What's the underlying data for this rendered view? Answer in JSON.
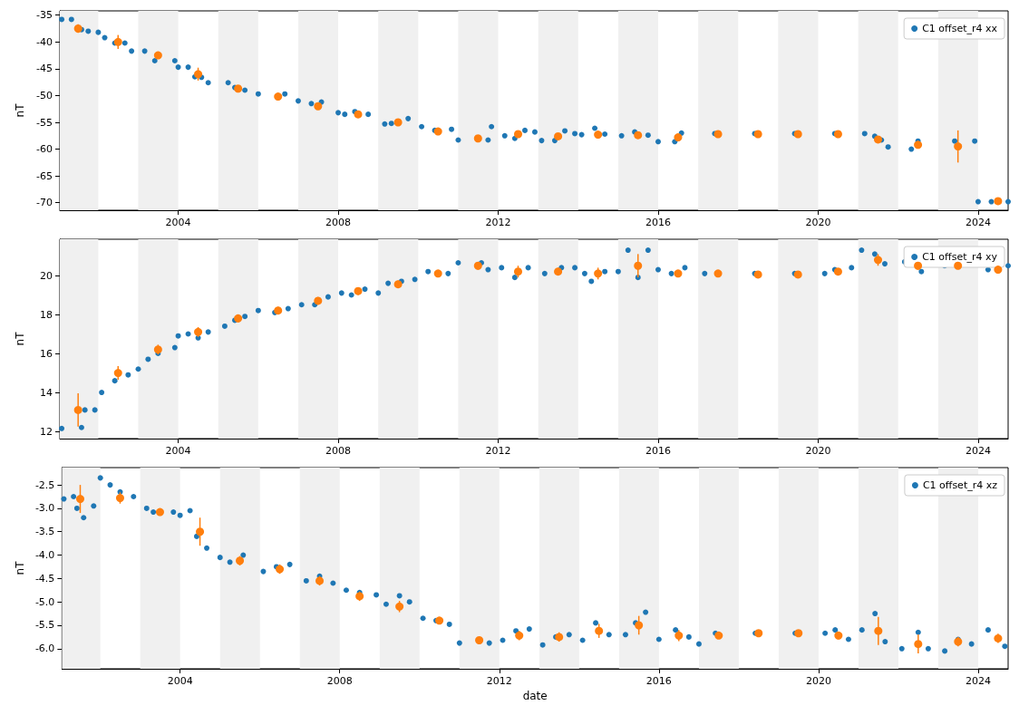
{
  "chart_data": [
    {
      "type": "scatter",
      "ylabel": "nT",
      "legend": "top right",
      "marker": "circle",
      "xlim": [
        "2001-01-15",
        "2024-10-01"
      ],
      "ylim": [
        -71.4,
        -34.2
      ],
      "xticks": [
        "2004",
        "2008",
        "2012",
        "2016",
        "2020",
        "2024"
      ],
      "yticks": [
        -70,
        -65,
        -60,
        -55,
        -50,
        -45,
        -40,
        -35
      ],
      "bands": [
        {
          "axis": "x",
          "from": "2001",
          "to": "2002",
          "color": "#f0f0f0"
        },
        {
          "axis": "x",
          "from": "2003",
          "to": "2004",
          "color": "#f0f0f0"
        },
        {
          "axis": "x",
          "from": "2005",
          "to": "2006",
          "color": "#f0f0f0"
        },
        {
          "axis": "x",
          "from": "2007",
          "to": "2008",
          "color": "#f0f0f0"
        },
        {
          "axis": "x",
          "from": "2009",
          "to": "2010",
          "color": "#f0f0f0"
        },
        {
          "axis": "x",
          "from": "2011",
          "to": "2012",
          "color": "#f0f0f0"
        },
        {
          "axis": "x",
          "from": "2013",
          "to": "2014",
          "color": "#f0f0f0"
        },
        {
          "axis": "x",
          "from": "2015",
          "to": "2016",
          "color": "#f0f0f0"
        },
        {
          "axis": "x",
          "from": "2017",
          "to": "2018",
          "color": "#f0f0f0"
        },
        {
          "axis": "x",
          "from": "2019",
          "to": "2020",
          "color": "#f0f0f0"
        },
        {
          "axis": "x",
          "from": "2021",
          "to": "2022",
          "color": "#f0f0f0"
        },
        {
          "axis": "x",
          "from": "2023",
          "to": "2024",
          "color": "#f0f0f0"
        }
      ],
      "series": [
        {
          "name": "C1 offset_r4 xx",
          "color": "#1f77b4",
          "x": [
            "2001-02",
            "2001-05",
            "2001-08",
            "2001-10",
            "2002-01",
            "2002-03",
            "2002-06",
            "2002-09",
            "2002-11",
            "2003-03",
            "2003-06",
            "2003-12",
            "2004-01",
            "2004-04",
            "2004-06",
            "2004-08",
            "2004-10",
            "2005-04",
            "2005-06",
            "2005-09",
            "2006-01",
            "2006-09",
            "2007-01",
            "2007-05",
            "2007-08",
            "2008-01",
            "2008-03",
            "2008-06",
            "2008-10",
            "2009-03",
            "2009-05",
            "2009-10",
            "2010-02",
            "2010-06",
            "2010-11",
            "2011-01",
            "2011-10",
            "2011-11",
            "2012-03",
            "2012-06",
            "2012-09",
            "2012-12",
            "2013-02",
            "2013-06",
            "2013-09",
            "2013-12",
            "2014-02",
            "2014-06",
            "2014-09",
            "2015-02",
            "2015-06",
            "2015-10",
            "2016-01",
            "2016-06",
            "2016-08",
            "2017-06",
            "2018-06",
            "2019-06",
            "2020-06",
            "2021-03",
            "2021-06",
            "2021-08",
            "2021-10",
            "2022-05",
            "2022-07",
            "2023-06",
            "2023-12",
            "2024-01",
            "2024-05",
            "2024-10"
          ],
          "values": [
            -35.8,
            -35.8,
            -37.7,
            -38,
            -38.2,
            -39.2,
            -40.2,
            -40.2,
            -41.7,
            -41.7,
            -43.5,
            -43.5,
            -44.7,
            -44.7,
            -46.5,
            -46.6,
            -47.6,
            -47.6,
            -48.5,
            -49,
            -49.7,
            -49.7,
            -51,
            -51.5,
            -51.2,
            -53.2,
            -53.5,
            -53,
            -53.5,
            -55.3,
            -55.2,
            -54.3,
            -55.8,
            -56.5,
            -56.3,
            -58.3,
            -58.3,
            -55.8,
            -57.5,
            -58,
            -56.5,
            -56.8,
            -58.4,
            -58.4,
            -56.6,
            -57.1,
            -57.3,
            -56.1,
            -57.2,
            -57.5,
            -56.8,
            -57.4,
            -58.6,
            -58.6,
            -57,
            -57.1,
            -57.1,
            -57.1,
            -57.1,
            -57.1,
            -57.6,
            -58.3,
            -59.6,
            -60,
            -58.5,
            -58.5,
            -58.5,
            -69.8,
            -69.8,
            -69.8
          ]
        },
        {
          "color": "#ff7f0e",
          "x": [
            "2001-07",
            "2002-07",
            "2003-07",
            "2004-07",
            "2005-07",
            "2006-07",
            "2007-07",
            "2008-07",
            "2009-07",
            "2010-07",
            "2011-07",
            "2012-07",
            "2013-07",
            "2014-07",
            "2015-07",
            "2016-07",
            "2017-07",
            "2018-07",
            "2019-07",
            "2020-07",
            "2021-07",
            "2022-07",
            "2023-07",
            "2024-07"
          ],
          "values": [
            -37.5,
            -40,
            -42.5,
            -46,
            -48.7,
            -50.2,
            -52,
            -53.5,
            -55,
            -56.7,
            -58,
            -57.2,
            -57.6,
            -57.3,
            -57.4,
            -57.8,
            -57.2,
            -57.2,
            -57.2,
            -57.2,
            -58.2,
            -59.2,
            -59.5,
            -69.7
          ],
          "errors": [
            0.8,
            1.3,
            0.6,
            1.2,
            0.6,
            0.4,
            0.6,
            0.5,
            0.4,
            0.4,
            0.5,
            0.4,
            0.4,
            0.6,
            0.5,
            0.5,
            0.2,
            0.2,
            0.2,
            0.2,
            0.6,
            0.5,
            3.0,
            0.3
          ]
        }
      ]
    },
    {
      "type": "scatter",
      "ylabel": "nT",
      "legend": "top right",
      "marker": "circle",
      "xlim": [
        "2001-01-15",
        "2024-10-01"
      ],
      "ylim": [
        11.63,
        21.86
      ],
      "xticks": [
        "2004",
        "2008",
        "2012",
        "2016",
        "2020",
        "2024"
      ],
      "yticks": [
        12,
        14,
        16,
        18,
        20
      ],
      "bands": [
        {
          "axis": "x",
          "from": "2001",
          "to": "2002",
          "color": "#f0f0f0"
        },
        {
          "axis": "x",
          "from": "2003",
          "to": "2004",
          "color": "#f0f0f0"
        },
        {
          "axis": "x",
          "from": "2005",
          "to": "2006",
          "color": "#f0f0f0"
        },
        {
          "axis": "x",
          "from": "2007",
          "to": "2008",
          "color": "#f0f0f0"
        },
        {
          "axis": "x",
          "from": "2009",
          "to": "2010",
          "color": "#f0f0f0"
        },
        {
          "axis": "x",
          "from": "2011",
          "to": "2012",
          "color": "#f0f0f0"
        },
        {
          "axis": "x",
          "from": "2013",
          "to": "2014",
          "color": "#f0f0f0"
        },
        {
          "axis": "x",
          "from": "2015",
          "to": "2016",
          "color": "#f0f0f0"
        },
        {
          "axis": "x",
          "from": "2017",
          "to": "2018",
          "color": "#f0f0f0"
        },
        {
          "axis": "x",
          "from": "2019",
          "to": "2020",
          "color": "#f0f0f0"
        },
        {
          "axis": "x",
          "from": "2021",
          "to": "2022",
          "color": "#f0f0f0"
        },
        {
          "axis": "x",
          "from": "2023",
          "to": "2024",
          "color": "#f0f0f0"
        }
      ],
      "series": [
        {
          "name": "C1 offset_r4 xy",
          "color": "#1f77b4",
          "x": [
            "2001-02",
            "2001-08",
            "2001-09",
            "2001-12",
            "2002-02",
            "2002-06",
            "2002-10",
            "2003-01",
            "2003-04",
            "2003-07",
            "2003-12",
            "2004-01",
            "2004-04",
            "2004-07",
            "2004-10",
            "2005-03",
            "2005-06",
            "2005-09",
            "2006-01",
            "2006-06",
            "2006-10",
            "2007-02",
            "2007-06",
            "2007-10",
            "2008-02",
            "2008-05",
            "2008-09",
            "2009-01",
            "2009-04",
            "2009-08",
            "2009-12",
            "2010-04",
            "2010-10",
            "2011-01",
            "2011-08",
            "2011-10",
            "2012-02",
            "2012-06",
            "2012-10",
            "2013-03",
            "2013-08",
            "2013-12",
            "2014-03",
            "2014-05",
            "2014-09",
            "2015-01",
            "2015-04",
            "2015-07",
            "2015-10",
            "2016-01",
            "2016-05",
            "2016-09",
            "2017-03",
            "2018-06",
            "2019-06",
            "2020-03",
            "2020-06",
            "2020-11",
            "2021-02",
            "2021-06",
            "2021-09",
            "2022-03",
            "2022-08",
            "2023-01",
            "2023-03",
            "2023-12",
            "2024-04",
            "2024-10"
          ],
          "values": [
            12.15,
            12.2,
            13.1,
            13.1,
            14,
            14.6,
            14.9,
            15.2,
            15.7,
            16,
            16.3,
            16.9,
            17,
            16.8,
            17.1,
            17.4,
            17.7,
            17.9,
            18.2,
            18.1,
            18.3,
            18.5,
            18.5,
            18.9,
            19.1,
            19,
            19.3,
            19.1,
            19.6,
            19.7,
            19.8,
            20.2,
            20.1,
            20.65,
            20.65,
            20.3,
            20.4,
            19.9,
            20.4,
            20.1,
            20.4,
            20.4,
            20.1,
            19.7,
            20.2,
            20.2,
            21.3,
            19.9,
            21.3,
            20.3,
            20.1,
            20.4,
            20.1,
            20.1,
            20.1,
            20.1,
            20.3,
            20.4,
            21.3,
            21.1,
            20.6,
            20.7,
            20.2,
            null,
            20.5,
            null,
            20.3,
            20.5
          ]
        },
        {
          "color": "#ff7f0e",
          "x": [
            "2001-07",
            "2002-07",
            "2003-07",
            "2004-07",
            "2005-07",
            "2006-07",
            "2007-07",
            "2008-07",
            "2009-07",
            "2010-07",
            "2011-07",
            "2012-07",
            "2013-07",
            "2014-07",
            "2015-07",
            "2016-07",
            "2017-07",
            "2018-07",
            "2019-07",
            "2020-07",
            "2021-07",
            "2022-07",
            "2023-07",
            "2024-07"
          ],
          "values": [
            13.1,
            15,
            16.2,
            17.1,
            17.8,
            18.2,
            18.7,
            19.2,
            19.55,
            20.1,
            20.5,
            20.2,
            20.2,
            20.1,
            20.5,
            20.1,
            20.1,
            20.05,
            20.05,
            20.2,
            20.8,
            20.5,
            20.5,
            20.3
          ],
          "errors": [
            0.85,
            0.35,
            0.25,
            0.25,
            0.2,
            0.2,
            0.2,
            0.2,
            0.2,
            0.15,
            0.2,
            0.3,
            0.2,
            0.3,
            0.6,
            0.15,
            0.1,
            0.1,
            0.1,
            0.15,
            0.3,
            0.2,
            0.15,
            0.15
          ]
        }
      ]
    },
    {
      "type": "scatter",
      "xlabel": "date",
      "ylabel": "nT",
      "legend": "top right",
      "marker": "circle",
      "xlim": [
        "2001-01-15",
        "2024-10-01"
      ],
      "ylim": [
        -6.43,
        -2.13
      ],
      "xticks": [
        "2004",
        "2008",
        "2012",
        "2016",
        "2020",
        "2024"
      ],
      "yticks": [
        {
          "value": -6,
          "label": "-6.0"
        },
        -5.5,
        {
          "value": -5,
          "label": "-5.0"
        },
        -4.5,
        {
          "value": -4,
          "label": "-4.0"
        },
        -3.5,
        {
          "value": -3,
          "label": "-3.0"
        },
        -2.5
      ],
      "bands": [
        {
          "axis": "x",
          "from": "2001",
          "to": "2002",
          "color": "#f0f0f0"
        },
        {
          "axis": "x",
          "from": "2003",
          "to": "2004",
          "color": "#f0f0f0"
        },
        {
          "axis": "x",
          "from": "2005",
          "to": "2006",
          "color": "#f0f0f0"
        },
        {
          "axis": "x",
          "from": "2007",
          "to": "2008",
          "color": "#f0f0f0"
        },
        {
          "axis": "x",
          "from": "2009",
          "to": "2010",
          "color": "#f0f0f0"
        },
        {
          "axis": "x",
          "from": "2011",
          "to": "2012",
          "color": "#f0f0f0"
        },
        {
          "axis": "x",
          "from": "2013",
          "to": "2014",
          "color": "#f0f0f0"
        },
        {
          "axis": "x",
          "from": "2015",
          "to": "2016",
          "color": "#f0f0f0"
        },
        {
          "axis": "x",
          "from": "2017",
          "to": "2018",
          "color": "#f0f0f0"
        },
        {
          "axis": "x",
          "from": "2019",
          "to": "2020",
          "color": "#f0f0f0"
        },
        {
          "axis": "x",
          "from": "2021",
          "to": "2022",
          "color": "#f0f0f0"
        },
        {
          "axis": "x",
          "from": "2023",
          "to": "2024",
          "color": "#f0f0f0"
        }
      ],
      "series": [
        {
          "name": "C1 offset_r4 xz",
          "color": "#1f77b4",
          "x": [
            "2001-02",
            "2001-05",
            "2001-06",
            "2001-08",
            "2001-11",
            "2002-01",
            "2002-04",
            "2002-07",
            "2002-11",
            "2003-03",
            "2003-05",
            "2003-11",
            "2004-01",
            "2004-04",
            "2004-06",
            "2004-09",
            "2005-01",
            "2005-04",
            "2005-08",
            "2006-02",
            "2006-06",
            "2006-10",
            "2007-03",
            "2007-07",
            "2007-11",
            "2008-03",
            "2008-07",
            "2008-12",
            "2009-03",
            "2009-07",
            "2009-10",
            "2010-02",
            "2010-06",
            "2010-10",
            "2011-01",
            "2011-10",
            "2012-02",
            "2012-06",
            "2012-10",
            "2013-02",
            "2013-06",
            "2013-10",
            "2014-02",
            "2014-06",
            "2014-10",
            "2015-03",
            "2015-06",
            "2015-09",
            "2016-01",
            "2016-06",
            "2016-10",
            "2017-01",
            "2017-06",
            "2018-06",
            "2019-06",
            "2020-03",
            "2020-06",
            "2020-10",
            "2021-02",
            "2021-06",
            "2021-09",
            "2022-02",
            "2022-07",
            "2022-10",
            "2023-03",
            "2023-07",
            "2023-11",
            "2024-04",
            "2024-09"
          ],
          "values": [
            -2.8,
            -2.75,
            -3.0,
            -3.2,
            -2.95,
            -2.35,
            -2.5,
            -2.65,
            -2.75,
            -3.0,
            -3.08,
            -3.08,
            -3.15,
            -3.05,
            -3.6,
            -3.85,
            -4.05,
            -4.15,
            -4.0,
            -4.35,
            -4.25,
            -4.2,
            -4.55,
            -4.45,
            -4.6,
            -4.75,
            -4.8,
            -4.85,
            -5.05,
            -4.87,
            -5.0,
            -5.35,
            -5.4,
            -5.48,
            -5.88,
            -5.88,
            -5.82,
            -5.62,
            -5.58,
            -5.92,
            -5.75,
            -5.7,
            -5.82,
            -5.45,
            -5.7,
            -5.7,
            -5.45,
            -5.22,
            -5.8,
            -5.6,
            -5.75,
            -5.9,
            -5.67,
            -5.67,
            -5.67,
            -5.67,
            -5.6,
            -5.8,
            -5.6,
            -5.25,
            -5.85,
            -6.0,
            -5.65,
            -6.0,
            -6.05,
            -5.8,
            -5.9,
            -5.6,
            -5.95
          ]
        },
        {
          "color": "#ff7f0e",
          "x": [
            "2001-07",
            "2002-07",
            "2003-07",
            "2004-07",
            "2005-07",
            "2006-07",
            "2007-07",
            "2008-07",
            "2009-07",
            "2010-07",
            "2011-07",
            "2012-07",
            "2013-07",
            "2014-07",
            "2015-07",
            "2016-07",
            "2017-07",
            "2018-07",
            "2019-07",
            "2020-07",
            "2021-07",
            "2022-07",
            "2023-07",
            "2024-07"
          ],
          "values": [
            -2.8,
            -2.78,
            -3.08,
            -3.5,
            -4.12,
            -4.3,
            -4.55,
            -4.88,
            -5.1,
            -5.4,
            -5.82,
            -5.72,
            -5.75,
            -5.62,
            -5.5,
            -5.72,
            -5.72,
            -5.67,
            -5.67,
            -5.72,
            -5.62,
            -5.9,
            -5.85,
            -5.78
          ],
          "errors": [
            0.3,
            0.12,
            0.05,
            0.3,
            0.1,
            0.1,
            0.1,
            0.1,
            0.12,
            0.05,
            0.08,
            0.1,
            0.1,
            0.15,
            0.2,
            0.12,
            0.06,
            0.03,
            0.03,
            0.08,
            0.3,
            0.2,
            0.1,
            0.1
          ]
        }
      ]
    }
  ]
}
